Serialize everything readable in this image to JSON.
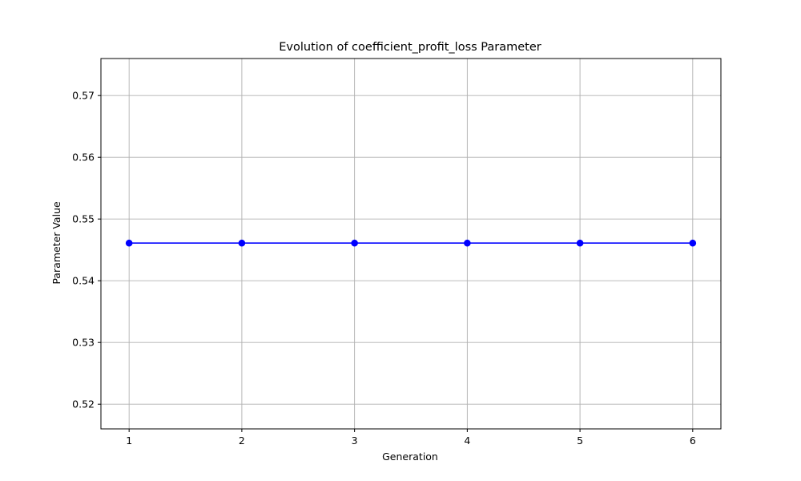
{
  "chart_data": {
    "type": "line",
    "title": "Evolution of coefficient_profit_loss Parameter",
    "xlabel": "Generation",
    "ylabel": "Parameter Value",
    "x": [
      1,
      2,
      3,
      4,
      5,
      6
    ],
    "series": [
      {
        "values": [
          0.5461,
          0.5461,
          0.5461,
          0.5461,
          0.5461,
          0.5461
        ],
        "color": "#0000ff",
        "marker": "circle"
      }
    ],
    "xticks": [
      1,
      2,
      3,
      4,
      5,
      6
    ],
    "xtick_labels": [
      "1",
      "2",
      "3",
      "4",
      "5",
      "6"
    ],
    "yticks": [
      0.52,
      0.53,
      0.54,
      0.55,
      0.56,
      0.57
    ],
    "ytick_labels": [
      "0.52",
      "0.53",
      "0.54",
      "0.55",
      "0.56",
      "0.57"
    ],
    "xlim": [
      0.75,
      6.25
    ],
    "ylim": [
      0.516,
      0.576
    ],
    "grid": true,
    "grid_color": "#b0b0b0"
  }
}
